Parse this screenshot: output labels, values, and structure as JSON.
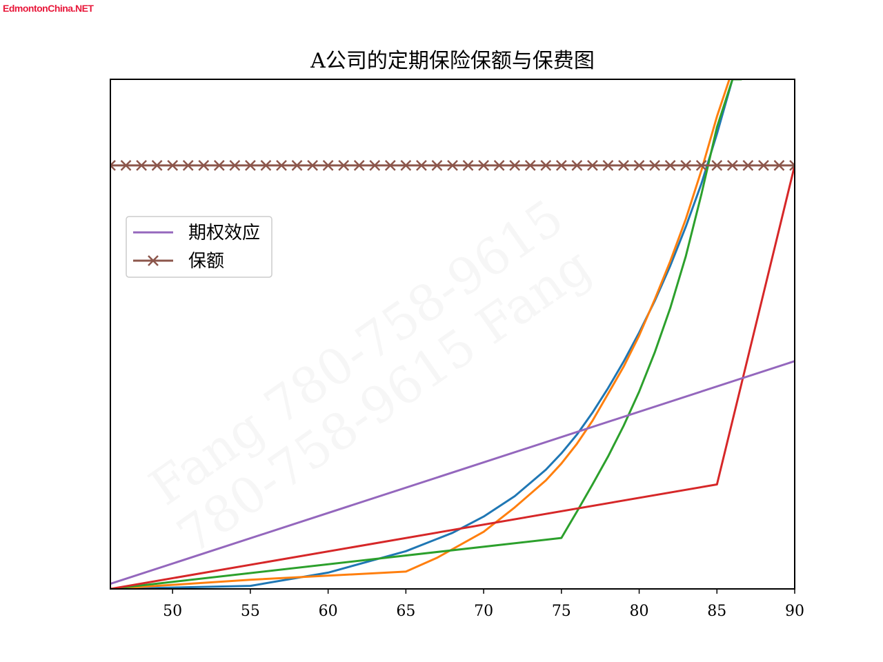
{
  "site_logo": "EdmontonChina.NET",
  "watermarks": [
    "Fang 780-758-9615",
    "780-758-9615 Fang"
  ],
  "chart_data": {
    "type": "line",
    "title": "A公司的定期保险保额与保费图",
    "xlabel": "",
    "ylabel": "",
    "xlim": [
      46,
      90
    ],
    "ylim": [
      0,
      100
    ],
    "x_ticks": [
      50,
      55,
      60,
      65,
      70,
      75,
      80,
      85,
      90
    ],
    "y_ticks": [],
    "grid": false,
    "legend_position": "upper-left",
    "series": [
      {
        "color": "#1f77b4",
        "x": [
          46,
          55,
          60,
          65,
          68,
          70,
          72,
          74,
          75,
          76,
          77,
          78,
          79,
          80,
          81,
          82,
          83,
          84,
          85,
          86
        ],
        "y": [
          0,
          0.6,
          3.2,
          7.4,
          11,
          14.2,
          18.2,
          23.4,
          26.6,
          30.3,
          34.6,
          39.4,
          44.6,
          50.3,
          56.5,
          63.4,
          71.1,
          79.5,
          89.3,
          100
        ]
      },
      {
        "color": "#ff7f0e",
        "x": [
          46,
          55,
          65,
          67,
          70,
          72,
          74,
          75,
          76,
          77,
          78,
          79,
          80,
          81,
          82,
          83,
          84,
          85,
          85.8
        ],
        "y": [
          0,
          1.8,
          3.4,
          6.1,
          11.2,
          16,
          21.3,
          24.6,
          28.5,
          33,
          38.3,
          43.6,
          49.7,
          56.8,
          64.3,
          72.6,
          82.1,
          92.7,
          100
        ]
      },
      {
        "color": "#2ca02c",
        "x": [
          46,
          75,
          76,
          77,
          78,
          79,
          80,
          81,
          82,
          83,
          84,
          85,
          86,
          86.6
        ],
        "y": [
          0,
          10,
          15.2,
          20.5,
          26,
          32,
          38.7,
          46.4,
          55.1,
          65.3,
          77.4,
          90.6,
          100,
          100
        ]
      },
      {
        "color": "#d62728",
        "x": [
          46,
          85,
          90
        ],
        "y": [
          0,
          20.5,
          83.1
        ]
      },
      {
        "name": "期权效应",
        "color": "#9467bd",
        "x": [
          46,
          90
        ],
        "y": [
          1,
          44.7
        ]
      },
      {
        "name": "保额",
        "color": "#8c564b",
        "marker": "x",
        "x": [
          46,
          47,
          48,
          49,
          50,
          51,
          52,
          53,
          54,
          55,
          56,
          57,
          58,
          59,
          60,
          61,
          62,
          63,
          64,
          65,
          66,
          67,
          68,
          69,
          70,
          71,
          72,
          73,
          74,
          75,
          76,
          77,
          78,
          79,
          80,
          81,
          82,
          83,
          84,
          85,
          86,
          87,
          88,
          89,
          90
        ],
        "y": [
          83.1,
          83.1,
          83.1,
          83.1,
          83.1,
          83.1,
          83.1,
          83.1,
          83.1,
          83.1,
          83.1,
          83.1,
          83.1,
          83.1,
          83.1,
          83.1,
          83.1,
          83.1,
          83.1,
          83.1,
          83.1,
          83.1,
          83.1,
          83.1,
          83.1,
          83.1,
          83.1,
          83.1,
          83.1,
          83.1,
          83.1,
          83.1,
          83.1,
          83.1,
          83.1,
          83.1,
          83.1,
          83.1,
          83.1,
          83.1,
          83.1,
          83.1,
          83.1,
          83.1,
          83.1
        ]
      }
    ]
  }
}
